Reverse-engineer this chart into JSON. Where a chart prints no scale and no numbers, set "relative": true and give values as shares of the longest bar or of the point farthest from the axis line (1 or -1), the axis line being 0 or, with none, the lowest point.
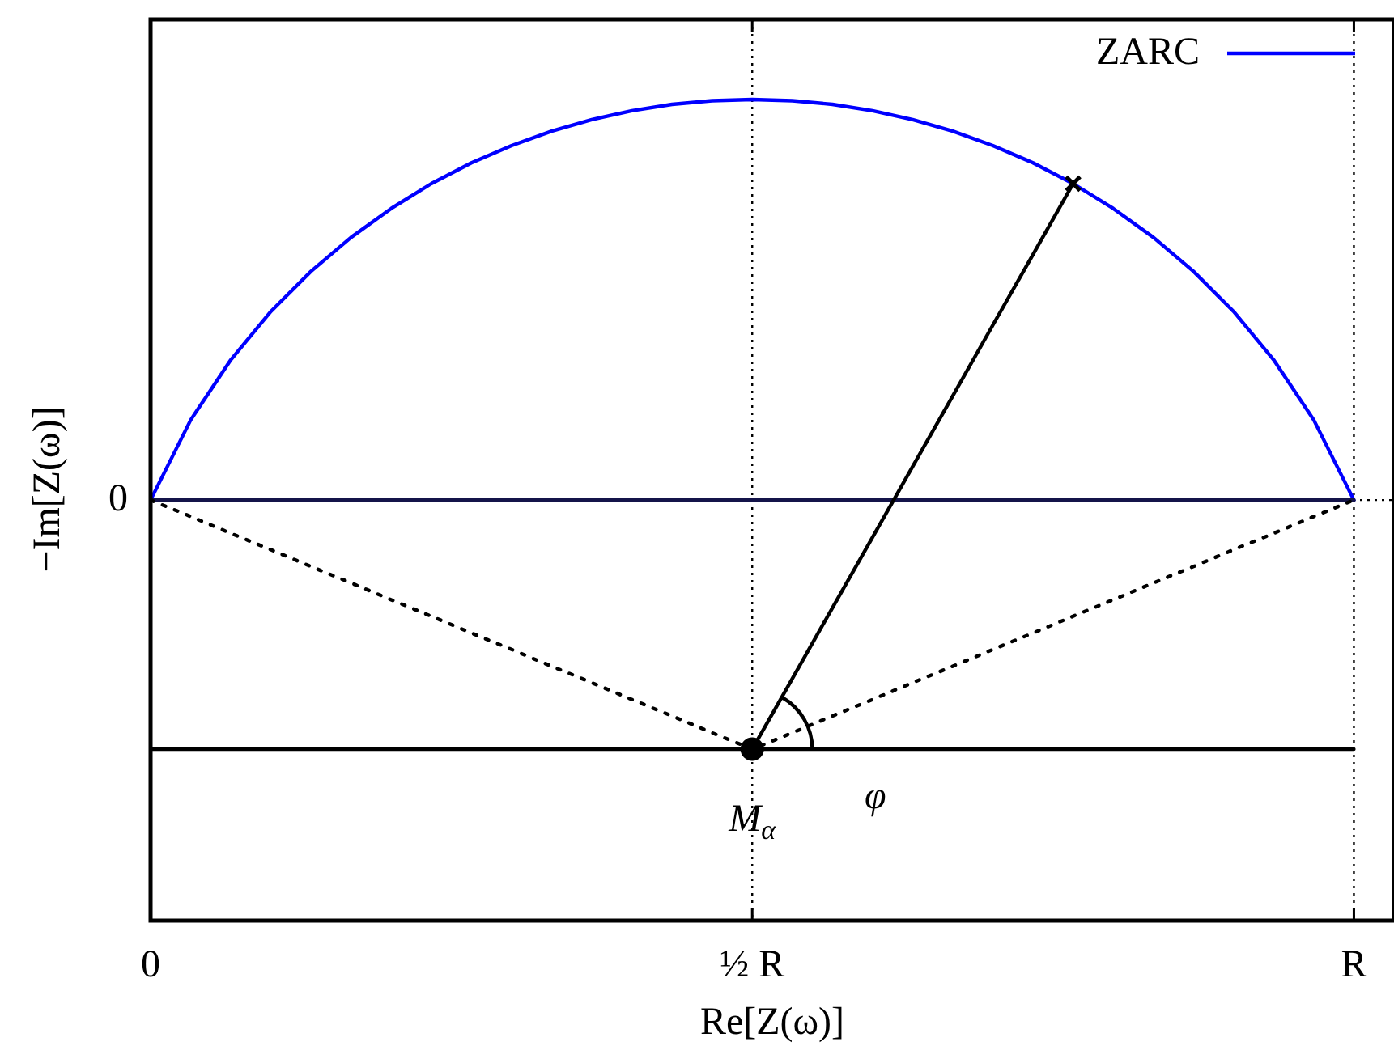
{
  "chart_data": {
    "type": "line",
    "xlabel": "Re[Z(ω)]",
    "ylabel": "−Im[Z(ω)]",
    "relative": true,
    "legend": "top right",
    "categories": [
      "0",
      null,
      null,
      null,
      null,
      null,
      null,
      null,
      null,
      null,
      null,
      null,
      null,
      null,
      null,
      "½ R",
      null,
      null,
      null,
      null,
      null,
      null,
      null,
      null,
      null,
      null,
      null,
      null,
      null,
      null,
      "R",
      null
    ],
    "ref_lines": [
      {
        "axis": "y",
        "value": 0,
        "label": "0",
        "line_style": "dotted",
        "color": "#000000"
      },
      {
        "axis": "x",
        "value": "½ R",
        "line_style": "dotted",
        "color": "#000000"
      },
      {
        "axis": "x",
        "value": "R",
        "line_style": "dotted",
        "color": "#000000"
      }
    ],
    "annotations": [
      "φ"
    ],
    "series": [
      {
        "name": "ZARC",
        "color": "#0000ff",
        "values": [
          0,
          0.2,
          0.35,
          0.471,
          0.571,
          0.656,
          0.728,
          0.79,
          0.842,
          0.885,
          0.921,
          0.95,
          0.972,
          0.988,
          0.997,
          1,
          0.997,
          0.988,
          0.972,
          0.95,
          0.921,
          0.885,
          0.842,
          0.79,
          0.728,
          0.656,
          0.571,
          0.471,
          0.35,
          0.2,
          0,
          null
        ]
      },
      {
        "color": "#14144a",
        "values": [
          0,
          0,
          0,
          0,
          0,
          0,
          0,
          0,
          0,
          0,
          0,
          0,
          0,
          0,
          0,
          0,
          0,
          0,
          0,
          0,
          0,
          0,
          0,
          0,
          0,
          0,
          0,
          0,
          0,
          0,
          0,
          null
        ]
      },
      {
        "color": "#000000",
        "line_style": "dotted",
        "values": [
          0,
          -0.041,
          -0.083,
          -0.124,
          -0.166,
          -0.207,
          -0.249,
          -0.29,
          -0.332,
          -0.373,
          -0.415,
          -0.456,
          -0.498,
          -0.539,
          -0.581,
          -0.622,
          -0.581,
          -0.539,
          -0.498,
          -0.456,
          -0.415,
          -0.373,
          -0.332,
          -0.29,
          -0.249,
          -0.207,
          -0.166,
          -0.124,
          -0.083,
          -0.041,
          0,
          null
        ]
      },
      {
        "color": "#000000",
        "values": [
          -0.622,
          -0.622,
          -0.622,
          -0.622,
          -0.622,
          -0.622,
          -0.622,
          -0.622,
          -0.622,
          -0.622,
          -0.622,
          -0.622,
          -0.622,
          -0.622,
          -0.622,
          -0.622,
          -0.622,
          -0.622,
          -0.622,
          -0.622,
          -0.622,
          -0.622,
          -0.622,
          -0.622,
          -0.622,
          -0.622,
          -0.622,
          -0.622,
          -0.622,
          -0.622,
          -0.622,
          null
        ]
      },
      {
        "color": "#000000",
        "values": [
          null,
          null,
          null,
          null,
          null,
          null,
          null,
          null,
          null,
          null,
          null,
          null,
          null,
          null,
          null,
          -0.622,
          -0.446,
          -0.269,
          -0.093,
          0.084,
          0.26,
          0.437,
          0.613,
          0.79,
          null,
          null,
          null,
          null,
          null,
          null,
          null,
          null
        ]
      },
      {
        "name": "M$_{α}$",
        "type": "scatter",
        "color": "#000000",
        "marker": "circle",
        "values": [
          null,
          null,
          null,
          null,
          null,
          null,
          null,
          null,
          null,
          null,
          null,
          null,
          null,
          null,
          null,
          -0.622,
          null,
          null,
          null,
          null,
          null,
          null,
          null,
          null,
          null,
          null,
          null,
          null,
          null,
          null,
          null,
          null
        ]
      },
      {
        "type": "scatter",
        "color": "#000000",
        "marker": "cross",
        "values": [
          null,
          null,
          null,
          null,
          null,
          null,
          null,
          null,
          null,
          null,
          null,
          null,
          null,
          null,
          null,
          null,
          null,
          null,
          null,
          null,
          null,
          null,
          null,
          0.79,
          null,
          null,
          null,
          null,
          null,
          null,
          null,
          null
        ]
      }
    ]
  }
}
